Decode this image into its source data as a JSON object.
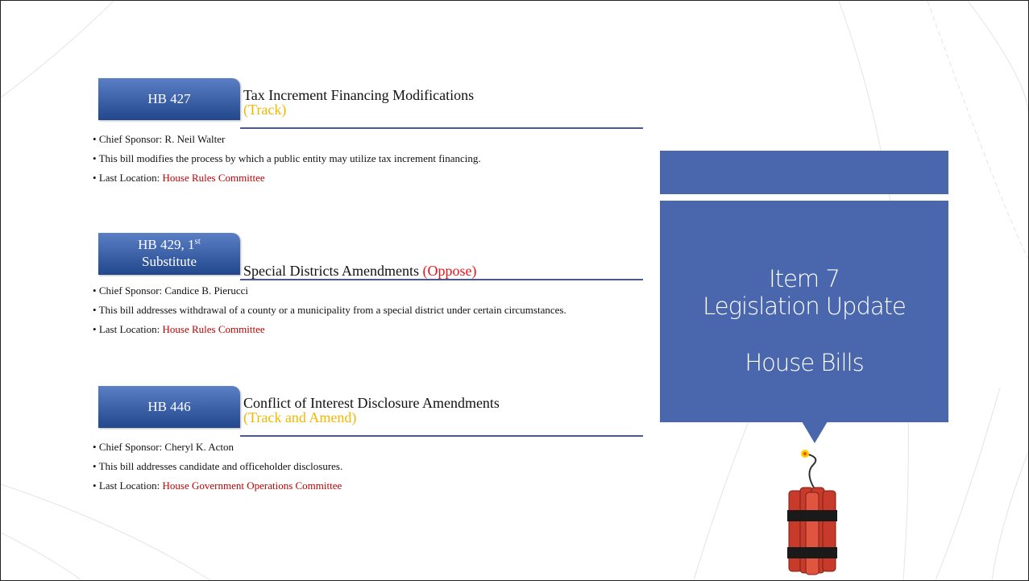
{
  "bills": [
    {
      "tag": "HB 427",
      "title": "Tax Increment Financing Modifications",
      "status": "(Track)",
      "status_color": "#f2b800",
      "sponsor": "Chief Sponsor: R. Neil Walter",
      "description": "This bill modifies the process by which a public entity may utilize tax increment financing.",
      "location_label": "Last Location:",
      "location": "House Rules Committee"
    },
    {
      "tag": "HB 429, 1",
      "tag_sup": "st",
      "tag_line2": "Substitute",
      "title": "Special Districts Amendments",
      "status": "(Oppose)",
      "status_color": "#e8141a",
      "sponsor": "Chief Sponsor: Candice B. Pierucci",
      "description": "This bill addresses withdrawal of a county or a municipality from a special district under certain circumstances.",
      "location_label": "Last Location:",
      "location": "House Rules Committee"
    },
    {
      "tag": "HB 446",
      "title": "Conflict of Interest Disclosure Amendments",
      "status": "(Track and Amend)",
      "status_color": "#f2b800",
      "sponsor": "Chief Sponsor: Cheryl K. Acton",
      "description": "This bill addresses candidate and officeholder disclosures.",
      "location_label": "Last Location:",
      "location": "House Government Operations Committee"
    }
  ],
  "panel": {
    "line1": "Item 7",
    "line2": "Legislation Update",
    "line3": "House Bills"
  }
}
